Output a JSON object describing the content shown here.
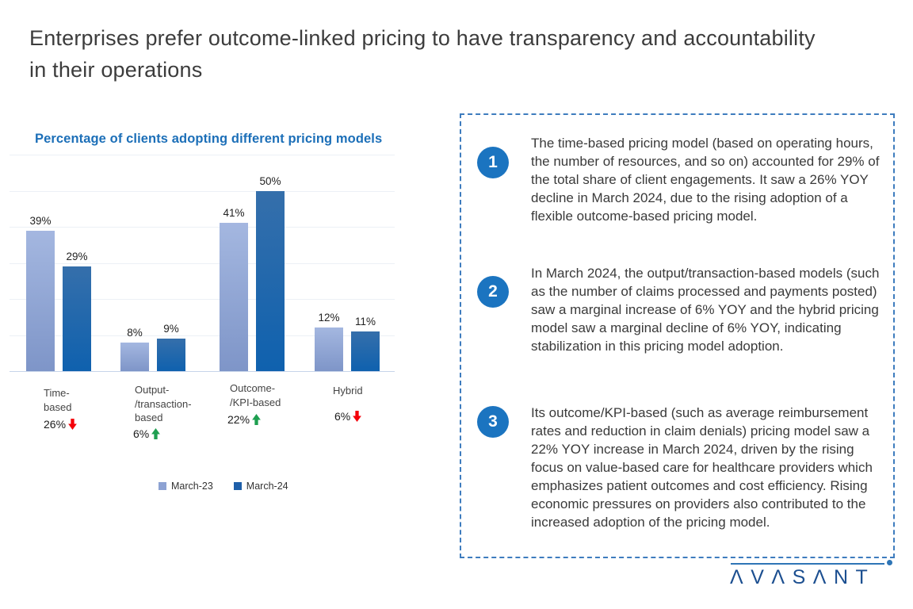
{
  "page": {
    "title": "Enterprises prefer outcome-linked pricing to have transparency and accountability in their operations"
  },
  "chart_data": {
    "type": "bar",
    "title": "Percentage of clients adopting different pricing models",
    "categories": [
      "Time-based",
      "Output-/transaction-based",
      "Outcome-/KPI-based",
      "Hybrid"
    ],
    "category_label_lines": [
      [
        "Time-",
        "based"
      ],
      [
        "Output-",
        "/transaction-",
        "based"
      ],
      [
        "Outcome-",
        "/KPI-based"
      ],
      [
        "Hybrid"
      ]
    ],
    "series": [
      {
        "name": "March-23",
        "values": [
          39,
          8,
          41,
          12
        ],
        "color_top": "#a4b7e0",
        "color_bottom": "#7e95c8",
        "legend_color": "#8da2d3"
      },
      {
        "name": "March-24",
        "values": [
          29,
          9,
          50,
          11
        ],
        "color_top": "#356fab",
        "color_bottom": "#0f61ae",
        "legend_color": "#1e5fa9"
      }
    ],
    "data_labels": [
      [
        "39%",
        "8%",
        "41%",
        "12%"
      ],
      [
        "29%",
        "9%",
        "50%",
        "11%"
      ]
    ],
    "yoy_changes": [
      {
        "value": "26%",
        "direction": "down",
        "color": "#f40009"
      },
      {
        "value": "6%",
        "direction": "up",
        "color": "#1e9f50"
      },
      {
        "value": "22%",
        "direction": "up",
        "color": "#1e9f50"
      },
      {
        "value": "6%",
        "direction": "down",
        "color": "#f40009"
      }
    ],
    "ylim": [
      0,
      60
    ],
    "grid_step": 10,
    "grid": true,
    "y_axis_labels_visible": false,
    "legend_position": "bottom"
  },
  "insights": {
    "items": [
      {
        "number": "1",
        "text": "The time-based pricing model (based on operating hours, the number of resources, and so on) accounted for 29% of the total share of client engagements. It saw a 26% YOY decline in March 2024, due to the rising adoption of a flexible outcome-based pricing model."
      },
      {
        "number": "2",
        "text": "In March 2024, the output/transaction-based models (such as the number of claims processed and payments posted) saw a marginal increase of 6% YOY and the hybrid pricing model saw a marginal decline of 6% YOY, indicating stabilization in this pricing model adoption."
      },
      {
        "number": "3",
        "text": "Its outcome/KPI-based (such as average reimbursement rates and reduction in claim denials) pricing model saw a 22% YOY increase in March 2024, driven by the rising focus on value-based care for healthcare providers which emphasizes patient outcomes and cost efficiency. Rising economic pressures on providers also contributed to the increased adoption of the pricing model."
      }
    ]
  },
  "logo": {
    "text": "AVASANT",
    "display_text": "ΛVΛSΛNT"
  },
  "colors": {
    "chart_title_blue": "#1c6fb8",
    "circle_blue": "#1b74c0",
    "dashed_border_blue": "#3e7cbe",
    "logo_navy": "#1c4f90",
    "yoy_up_green": "#1e9f50",
    "yoy_down_red": "#f40009"
  }
}
